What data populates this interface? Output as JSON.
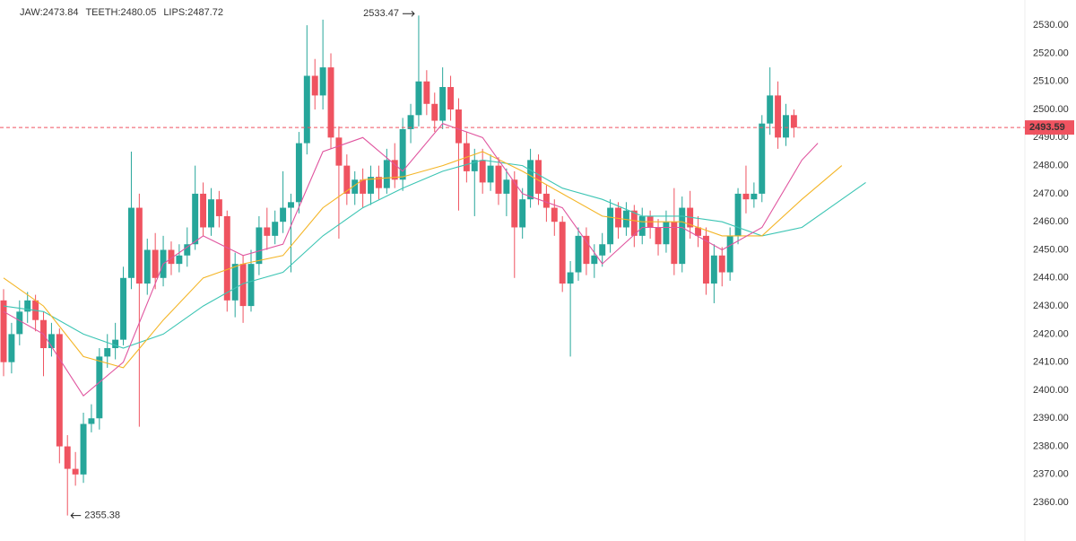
{
  "chart_data": {
    "type": "candlestick",
    "up_color": "#26a69a",
    "down_color": "#ef5360",
    "ylim": [
      2346.3,
      2539
    ],
    "xlim": [
      -0.45,
      127.6
    ],
    "yticks": [
      {
        "value": 2360,
        "label": "2360.00"
      },
      {
        "value": 2370,
        "label": "2370.00"
      },
      {
        "value": 2380,
        "label": "2380.00"
      },
      {
        "value": 2390,
        "label": "2390.00"
      },
      {
        "value": 2400,
        "label": "2400.00"
      },
      {
        "value": 2410,
        "label": "2410.00"
      },
      {
        "value": 2420,
        "label": "2420.00"
      },
      {
        "value": 2430,
        "label": "2430.00"
      },
      {
        "value": 2440,
        "label": "2440.00"
      },
      {
        "value": 2450,
        "label": "2450.00"
      },
      {
        "value": 2460,
        "label": "2460.00"
      },
      {
        "value": 2470,
        "label": "2470.00"
      },
      {
        "value": 2480,
        "label": "2480.00"
      },
      {
        "value": 2490,
        "label": "2490.00"
      },
      {
        "value": 2500,
        "label": "2500.00"
      },
      {
        "value": 2510,
        "label": "2510.00"
      },
      {
        "value": 2520,
        "label": "2520.00"
      },
      {
        "value": 2530,
        "label": "2530.00"
      }
    ],
    "last_price": 2493.59,
    "last_price_color": "#ef5360",
    "max_label": "2533.47",
    "max_index": 52,
    "min_label": "2355.38",
    "min_index": 8,
    "ohlc": [
      [
        2432,
        2436,
        2405,
        2410
      ],
      [
        2410,
        2424,
        2406,
        2420
      ],
      [
        2420,
        2432,
        2416,
        2428
      ],
      [
        2428,
        2435,
        2424,
        2432
      ],
      [
        2432,
        2434,
        2421,
        2425
      ],
      [
        2425,
        2428,
        2405,
        2415
      ],
      [
        2415,
        2424,
        2412,
        2420
      ],
      [
        2420,
        2422,
        2374,
        2380
      ],
      [
        2380,
        2384,
        2355.38,
        2372
      ],
      [
        2372,
        2378,
        2366,
        2370
      ],
      [
        2370,
        2392,
        2367,
        2388
      ],
      [
        2388,
        2395,
        2385,
        2390
      ],
      [
        2390,
        2415,
        2386,
        2412
      ],
      [
        2412,
        2420,
        2408,
        2415
      ],
      [
        2415,
        2424,
        2411,
        2418
      ],
      [
        2418,
        2444,
        2416,
        2440
      ],
      [
        2440,
        2485,
        2436,
        2465
      ],
      [
        2465,
        2470,
        2387,
        2438
      ],
      [
        2438,
        2454,
        2434,
        2450
      ],
      [
        2450,
        2456,
        2436,
        2440
      ],
      [
        2440,
        2455,
        2437,
        2450
      ],
      [
        2450,
        2453,
        2441,
        2445
      ],
      [
        2445,
        2452,
        2442,
        2448
      ],
      [
        2448,
        2458,
        2444,
        2452
      ],
      [
        2452,
        2480,
        2450,
        2470
      ],
      [
        2470,
        2474,
        2455,
        2458
      ],
      [
        2458,
        2472,
        2455,
        2468
      ],
      [
        2468,
        2471,
        2458,
        2462
      ],
      [
        2462,
        2464,
        2428,
        2432
      ],
      [
        2432,
        2449,
        2426,
        2445
      ],
      [
        2445,
        2448,
        2424,
        2430
      ],
      [
        2430,
        2450,
        2428,
        2445
      ],
      [
        2445,
        2462,
        2441,
        2458
      ],
      [
        2458,
        2465,
        2450,
        2455
      ],
      [
        2455,
        2464,
        2452,
        2460
      ],
      [
        2460,
        2478,
        2456,
        2465
      ],
      [
        2465,
        2470,
        2442,
        2467
      ],
      [
        2467,
        2492,
        2463,
        2488
      ],
      [
        2488,
        2530,
        2484,
        2512
      ],
      [
        2512,
        2518,
        2500,
        2505
      ],
      [
        2505,
        2532,
        2500,
        2515
      ],
      [
        2515,
        2520,
        2486,
        2490
      ],
      [
        2490,
        2494,
        2454,
        2480
      ],
      [
        2480,
        2484,
        2466,
        2470
      ],
      [
        2470,
        2478,
        2466,
        2475
      ],
      [
        2475,
        2479,
        2465,
        2470
      ],
      [
        2470,
        2480,
        2466,
        2476
      ],
      [
        2476,
        2480,
        2468,
        2472
      ],
      [
        2472,
        2486,
        2470,
        2482
      ],
      [
        2482,
        2488,
        2472,
        2475
      ],
      [
        2475,
        2497,
        2471,
        2493
      ],
      [
        2493,
        2502,
        2488,
        2498
      ],
      [
        2498,
        2533.47,
        2494,
        2510
      ],
      [
        2510,
        2514,
        2498,
        2502
      ],
      [
        2502,
        2506,
        2492,
        2496
      ],
      [
        2496,
        2515,
        2493,
        2508
      ],
      [
        2508,
        2512,
        2496,
        2500
      ],
      [
        2500,
        2504,
        2464,
        2488
      ],
      [
        2488,
        2492,
        2474,
        2478
      ],
      [
        2478,
        2486,
        2462,
        2482
      ],
      [
        2482,
        2486,
        2470,
        2474
      ],
      [
        2474,
        2484,
        2471,
        2480
      ],
      [
        2480,
        2483,
        2466,
        2470
      ],
      [
        2470,
        2479,
        2462,
        2475
      ],
      [
        2475,
        2478,
        2440,
        2458
      ],
      [
        2458,
        2472,
        2454,
        2468
      ],
      [
        2468,
        2486,
        2465,
        2482
      ],
      [
        2482,
        2484,
        2466,
        2470
      ],
      [
        2470,
        2473,
        2460,
        2465
      ],
      [
        2465,
        2468,
        2455,
        2460
      ],
      [
        2460,
        2462,
        2435,
        2438
      ],
      [
        2438,
        2446,
        2412,
        2442
      ],
      [
        2442,
        2458,
        2439,
        2455
      ],
      [
        2455,
        2458,
        2441,
        2445
      ],
      [
        2445,
        2452,
        2440,
        2448
      ],
      [
        2448,
        2456,
        2444,
        2452
      ],
      [
        2452,
        2468,
        2449,
        2465
      ],
      [
        2465,
        2467,
        2454,
        2458
      ],
      [
        2458,
        2467,
        2455,
        2464
      ],
      [
        2464,
        2466,
        2451,
        2455
      ],
      [
        2455,
        2465,
        2452,
        2462
      ],
      [
        2462,
        2464,
        2454,
        2458
      ],
      [
        2458,
        2461,
        2448,
        2452
      ],
      [
        2452,
        2464,
        2449,
        2460
      ],
      [
        2460,
        2472,
        2441,
        2445
      ],
      [
        2445,
        2469,
        2442,
        2465
      ],
      [
        2465,
        2471,
        2454,
        2458
      ],
      [
        2458,
        2462,
        2451,
        2455
      ],
      [
        2455,
        2458,
        2434,
        2438
      ],
      [
        2438,
        2452,
        2431,
        2448
      ],
      [
        2448,
        2451,
        2437,
        2442
      ],
      [
        2442,
        2458,
        2439,
        2455
      ],
      [
        2455,
        2472,
        2452,
        2470
      ],
      [
        2470,
        2480,
        2463,
        2468
      ],
      [
        2468,
        2474,
        2465,
        2470
      ],
      [
        2470,
        2498,
        2467,
        2495
      ],
      [
        2495,
        2515,
        2491,
        2505
      ],
      [
        2505,
        2510,
        2486,
        2490
      ],
      [
        2490,
        2502,
        2487,
        2498
      ],
      [
        2498,
        2500,
        2490,
        2493.59
      ]
    ],
    "series": [
      {
        "name": "JAW:2473.84",
        "color": "#3cc5b4",
        "x": [
          0,
          5,
          10,
          15,
          20,
          25,
          30,
          35,
          40,
          45,
          50,
          55,
          60,
          65,
          70,
          75,
          80,
          85,
          90,
          95,
          100,
          105,
          108
        ],
        "values": [
          2430,
          2428,
          2420,
          2415,
          2420,
          2430,
          2438,
          2442,
          2455,
          2465,
          2472,
          2478,
          2482,
          2480,
          2472,
          2468,
          2462,
          2462,
          2460,
          2455,
          2458,
          2468,
          2474
        ]
      },
      {
        "name": "TEETH:2480.05",
        "color": "#f4b526",
        "x": [
          0,
          5,
          10,
          15,
          20,
          25,
          30,
          35,
          40,
          45,
          50,
          55,
          60,
          65,
          70,
          75,
          80,
          85,
          90,
          95,
          100,
          105
        ],
        "values": [
          2440,
          2430,
          2412,
          2408,
          2425,
          2440,
          2445,
          2448,
          2465,
          2475,
          2476,
          2480,
          2485,
          2478,
          2470,
          2462,
          2460,
          2460,
          2455,
          2455,
          2468,
          2480
        ]
      },
      {
        "name": "LIPS:2487.72",
        "color": "#e0559f",
        "x": [
          0,
          5,
          10,
          15,
          20,
          25,
          30,
          35,
          40,
          45,
          50,
          55,
          60,
          65,
          70,
          75,
          80,
          85,
          90,
          95,
          100,
          102
        ],
        "values": [
          2428,
          2420,
          2398,
          2410,
          2445,
          2455,
          2448,
          2452,
          2485,
          2490,
          2478,
          2495,
          2490,
          2470,
          2465,
          2445,
          2458,
          2458,
          2450,
          2458,
          2482,
          2488
        ]
      }
    ]
  }
}
